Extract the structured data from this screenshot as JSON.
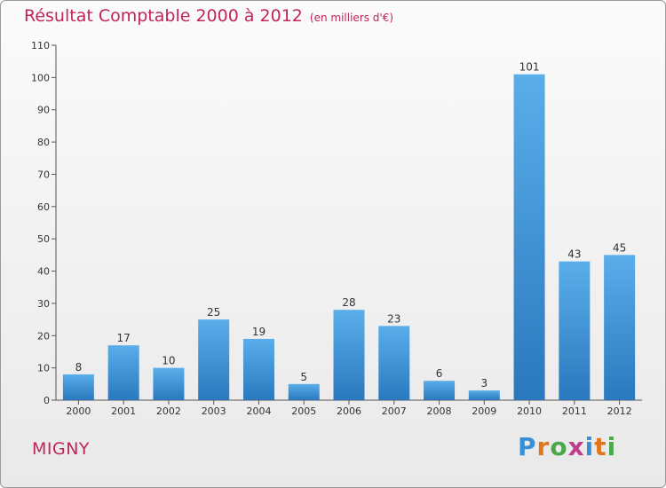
{
  "title": "Résultat Comptable 2000 à 2012",
  "subtitle": "(en milliers d'€)",
  "commune": "MIGNY",
  "brand": {
    "text": "Proxiti",
    "letter_colors": [
      "#3a8fd4",
      "#e2761d",
      "#4aa84a",
      "#c23c8c",
      "#3a8fd4",
      "#e2761d",
      "#4aa84a"
    ]
  },
  "colors": {
    "title": "#c0245c",
    "bar_top": "#5aaeea",
    "bar_bottom": "#2a78bd"
  },
  "chart_data": {
    "type": "bar",
    "categories": [
      "2000",
      "2001",
      "2002",
      "2003",
      "2004",
      "2005",
      "2006",
      "2007",
      "2008",
      "2009",
      "2010",
      "2011",
      "2012"
    ],
    "values": [
      8,
      17,
      10,
      25,
      19,
      5,
      28,
      23,
      6,
      3,
      101,
      43,
      45
    ],
    "ylim": [
      0,
      110
    ],
    "yticks": [
      0,
      10,
      20,
      30,
      40,
      50,
      60,
      70,
      80,
      90,
      100,
      110
    ],
    "grid": false
  }
}
